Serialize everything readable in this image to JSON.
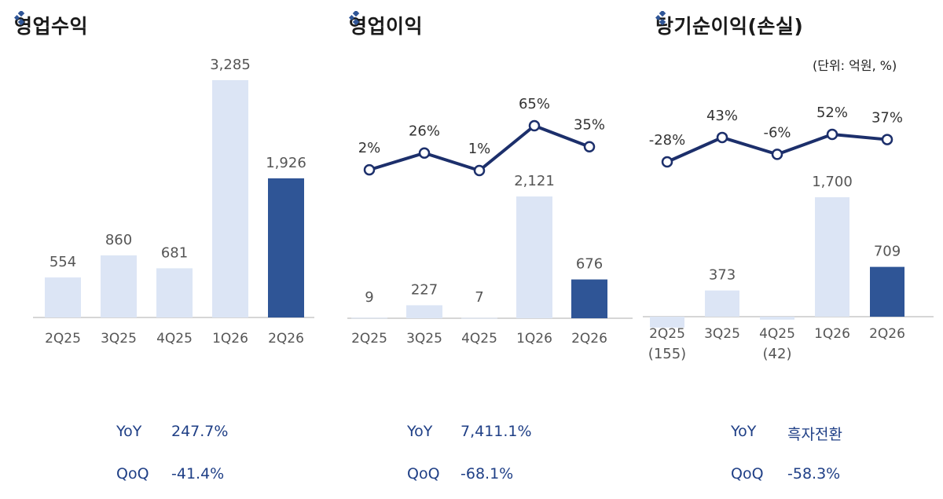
{
  "colors": {
    "bar_light": "#dce5f5",
    "bar_dark": "#2f5596",
    "line": "#1c2f6b",
    "stat_text": "#1f3f86"
  },
  "icon": "diamond-cluster-icon",
  "chart_data": [
    {
      "type": "bar",
      "title": "영업수익",
      "categories": [
        "2Q25",
        "3Q25",
        "4Q25",
        "1Q26",
        "2Q26"
      ],
      "values": [
        554,
        860,
        681,
        3285,
        1926
      ],
      "value_labels": [
        "554",
        "860",
        "681",
        "3,285",
        "1,926"
      ],
      "highlight_index": 4,
      "stats": [
        {
          "label": "YoY",
          "value": "247.7%"
        },
        {
          "label": "QoQ",
          "value": "-41.4%"
        }
      ]
    },
    {
      "type": "bar",
      "title": "영업이익",
      "categories": [
        "2Q25",
        "3Q25",
        "4Q25",
        "1Q26",
        "2Q26"
      ],
      "values": [
        9,
        227,
        7,
        2121,
        676
      ],
      "value_labels": [
        "9",
        "227",
        "7",
        "2,121",
        "676"
      ],
      "highlight_index": 4,
      "line_series": {
        "values": [
          2,
          26,
          1,
          65,
          35
        ],
        "labels": [
          "2%",
          "26%",
          "1%",
          "65%",
          "35%"
        ]
      },
      "stats": [
        {
          "label": "YoY",
          "value": "7,411.1%"
        },
        {
          "label": "QoQ",
          "value": "-68.1%"
        }
      ]
    },
    {
      "type": "bar",
      "title": "당기순이익(손실)",
      "unit": "(단위:  억원, %)",
      "categories": [
        "2Q25",
        "3Q25",
        "4Q25",
        "1Q26",
        "2Q26"
      ],
      "values": [
        -155,
        373,
        -42,
        1700,
        709
      ],
      "value_labels": [
        "(155)",
        "373",
        "(42)",
        "1,700",
        "709"
      ],
      "highlight_index": 4,
      "line_series": {
        "values": [
          -28,
          43,
          -6,
          52,
          37
        ],
        "labels": [
          "-28%",
          "43%",
          "-6%",
          "52%",
          "37%"
        ]
      },
      "stats": [
        {
          "label": "YoY",
          "value": "흑자전환"
        },
        {
          "label": "QoQ",
          "value": "-58.3%"
        }
      ]
    }
  ]
}
